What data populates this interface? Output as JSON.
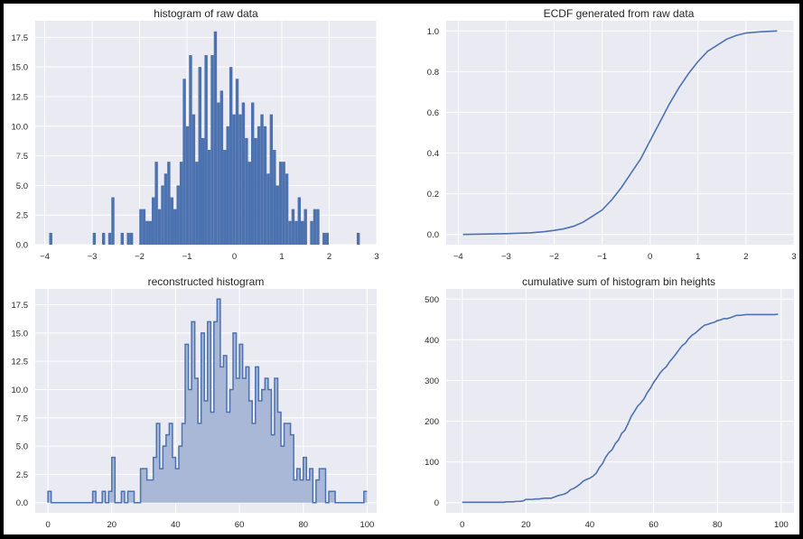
{
  "colors": {
    "background": "#ffffff",
    "plot_background": "#eaeaf2",
    "grid": "#ffffff",
    "series": "#4c72b0",
    "fill": "#a8b8d6",
    "text": "#262626"
  },
  "chart_data": [
    {
      "type": "bar",
      "title": "histogram of raw data",
      "xlabel": "",
      "ylabel": "",
      "xlim": [
        -4.2,
        3.0
      ],
      "ylim": [
        0,
        18.9
      ],
      "x_ticks": [
        "−4",
        "−3",
        "−2",
        "−1",
        "0",
        "1",
        "2",
        "3"
      ],
      "x_tick_values": [
        -4,
        -3,
        -2,
        -1,
        0,
        1,
        2,
        3
      ],
      "y_ticks": [
        "0.0",
        "2.5",
        "5.0",
        "7.5",
        "10.0",
        "12.5",
        "15.0",
        "17.5"
      ],
      "y_tick_values": [
        0,
        2.5,
        5,
        7.5,
        10,
        12.5,
        15,
        17.5
      ],
      "bin_start": -3.905,
      "bin_width": 0.0655,
      "values": [
        1,
        0,
        0,
        0,
        0,
        0,
        0,
        0,
        0,
        0,
        0,
        0,
        0,
        0,
        1,
        0,
        0,
        1,
        0,
        1,
        4,
        0,
        0,
        1,
        0,
        1,
        1,
        0,
        0,
        3,
        3,
        2,
        2,
        4,
        7,
        3,
        5,
        6,
        7,
        4,
        3,
        5,
        7,
        14,
        10,
        16,
        11,
        7,
        15,
        9,
        16,
        8,
        16,
        18,
        12,
        13,
        8,
        10,
        15,
        11,
        14,
        11,
        12,
        9,
        7,
        12,
        9,
        10,
        11,
        10,
        6,
        11,
        8,
        5,
        7,
        7,
        6,
        2,
        3,
        2,
        4,
        2,
        3,
        0,
        2,
        3,
        3,
        0,
        1,
        1,
        0,
        0,
        0,
        0,
        0,
        0,
        0,
        0,
        0,
        1
      ],
      "grid": true
    },
    {
      "type": "line",
      "title": "ECDF generated from raw data",
      "xlabel": "",
      "ylabel": "",
      "xlim": [
        -4.25,
        3.0
      ],
      "ylim": [
        -0.05,
        1.05
      ],
      "x_ticks": [
        "−4",
        "−3",
        "−2",
        "−1",
        "0",
        "1",
        "2",
        "3"
      ],
      "x_tick_values": [
        -4,
        -3,
        -2,
        -1,
        0,
        1,
        2,
        3
      ],
      "y_ticks": [
        "0.0",
        "0.2",
        "0.4",
        "0.6",
        "0.8",
        "1.0"
      ],
      "y_tick_values": [
        0,
        0.2,
        0.4,
        0.6,
        0.8,
        1.0
      ],
      "x": [
        -3.9,
        -3.0,
        -2.5,
        -2.2,
        -2.0,
        -1.8,
        -1.6,
        -1.4,
        -1.2,
        -1.0,
        -0.8,
        -0.6,
        -0.4,
        -0.2,
        0.0,
        0.2,
        0.4,
        0.6,
        0.8,
        1.0,
        1.2,
        1.4,
        1.6,
        1.8,
        2.0,
        2.3,
        2.65
      ],
      "y": [
        0.0,
        0.004,
        0.008,
        0.014,
        0.02,
        0.028,
        0.04,
        0.06,
        0.09,
        0.12,
        0.17,
        0.23,
        0.3,
        0.37,
        0.46,
        0.55,
        0.64,
        0.72,
        0.79,
        0.85,
        0.9,
        0.93,
        0.96,
        0.978,
        0.99,
        0.996,
        1.0
      ],
      "grid": true
    },
    {
      "type": "area",
      "title": "reconstructed histogram",
      "xlabel": "",
      "ylabel": "",
      "xlim": [
        -4,
        103
      ],
      "ylim": [
        -0.9,
        18.9
      ],
      "x_ticks": [
        "0",
        "20",
        "40",
        "60",
        "80",
        "100"
      ],
      "x_tick_values": [
        0,
        20,
        40,
        60,
        80,
        100
      ],
      "y_ticks": [
        "0.0",
        "2.5",
        "5.0",
        "7.5",
        "10.0",
        "12.5",
        "15.0",
        "17.5"
      ],
      "y_tick_values": [
        0,
        2.5,
        5,
        7.5,
        10,
        12.5,
        15,
        17.5
      ],
      "values": [
        1,
        0,
        0,
        0,
        0,
        0,
        0,
        0,
        0,
        0,
        0,
        0,
        0,
        0,
        1,
        0,
        0,
        1,
        0,
        1,
        4,
        0,
        0,
        1,
        0,
        1,
        1,
        0,
        0,
        3,
        3,
        2,
        2,
        4,
        7,
        3,
        5,
        6,
        7,
        4,
        3,
        5,
        7,
        14,
        10,
        16,
        11,
        7,
        15,
        9,
        16,
        8,
        16,
        18,
        12,
        13,
        8,
        10,
        15,
        11,
        14,
        11,
        12,
        9,
        7,
        12,
        9,
        10,
        11,
        10,
        6,
        11,
        8,
        5,
        7,
        7,
        6,
        2,
        3,
        2,
        4,
        2,
        3,
        0,
        2,
        3,
        3,
        0,
        1,
        1,
        0,
        0,
        0,
        0,
        0,
        0,
        0,
        0,
        0,
        1
      ],
      "grid": true
    },
    {
      "type": "line",
      "title": "cumulative sum of histogram bin heights",
      "xlabel": "",
      "ylabel": "",
      "xlim": [
        -5,
        104
      ],
      "ylim": [
        -25,
        525
      ],
      "x_ticks": [
        "0",
        "20",
        "40",
        "60",
        "80",
        "100"
      ],
      "x_tick_values": [
        0,
        20,
        40,
        60,
        80,
        100
      ],
      "y_ticks": [
        "0",
        "100",
        "200",
        "300",
        "400",
        "500"
      ],
      "y_tick_values": [
        0,
        100,
        200,
        300,
        400,
        500
      ],
      "values": "cumulative sum of the reconstructed histogram values",
      "grid": true
    }
  ]
}
